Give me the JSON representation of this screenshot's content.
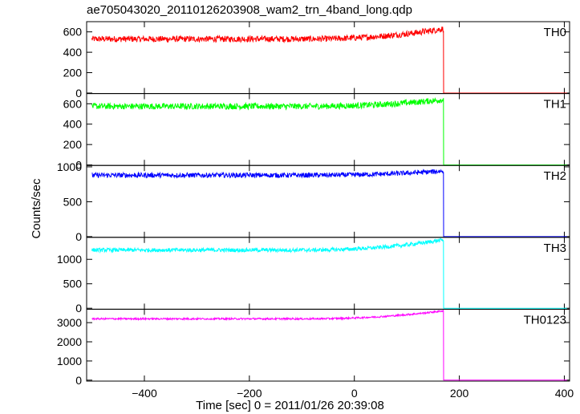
{
  "chart_data": {
    "type": "line",
    "title": "ae705043020_20110126203908_wam2_trn_4band_long.qdp",
    "xlabel": "Time [sec] 0 = 2011/01/26 20:39:08",
    "ylabel": "Counts/sec",
    "xlim": [
      -510,
      410
    ],
    "xticks": [
      -400,
      -200,
      0,
      200,
      400
    ],
    "x_tick_labels": [
      "−400",
      "−200",
      "0",
      "200",
      "400"
    ],
    "panels": [
      {
        "name": "TH0",
        "color": "#ff0000",
        "ylim": [
          -5,
          700
        ],
        "yticks": [
          0,
          200,
          400,
          600
        ],
        "series": {
          "x_start": -500,
          "x_drop": 170,
          "x_end": 405,
          "baseline": 530,
          "pre_drop_peak": 630,
          "noise": 30,
          "post_drop": 0
        }
      },
      {
        "name": "TH1",
        "color": "#00ff00",
        "ylim": [
          -5,
          700
        ],
        "yticks": [
          0,
          200,
          400,
          600
        ],
        "series": {
          "x_start": -500,
          "x_drop": 170,
          "x_end": 405,
          "baseline": 575,
          "pre_drop_peak": 640,
          "noise": 30,
          "post_drop": 0
        }
      },
      {
        "name": "TH2",
        "color": "#0000ff",
        "ylim": [
          -10,
          1020
        ],
        "yticks": [
          0,
          500,
          1000
        ],
        "series": {
          "x_start": -500,
          "x_drop": 170,
          "x_end": 405,
          "baseline": 880,
          "pre_drop_peak": 940,
          "noise": 35,
          "post_drop": 0
        }
      },
      {
        "name": "TH3",
        "color": "#00ffff",
        "ylim": [
          -20,
          1450
        ],
        "yticks": [
          0,
          500,
          1000
        ],
        "series": {
          "x_start": -500,
          "x_drop": 170,
          "x_end": 405,
          "baseline": 1190,
          "pre_drop_peak": 1400,
          "noise": 40,
          "post_drop": 0
        }
      },
      {
        "name": "TH0123",
        "color": "#ff00ff",
        "ylim": [
          -50,
          3700
        ],
        "yticks": [
          0,
          1000,
          2000,
          3000
        ],
        "series": {
          "x_start": -500,
          "x_drop": 170,
          "x_end": 405,
          "baseline": 3200,
          "pre_drop_peak": 3620,
          "noise": 45,
          "post_drop": 0
        }
      }
    ],
    "grid": false,
    "legend": "none"
  }
}
